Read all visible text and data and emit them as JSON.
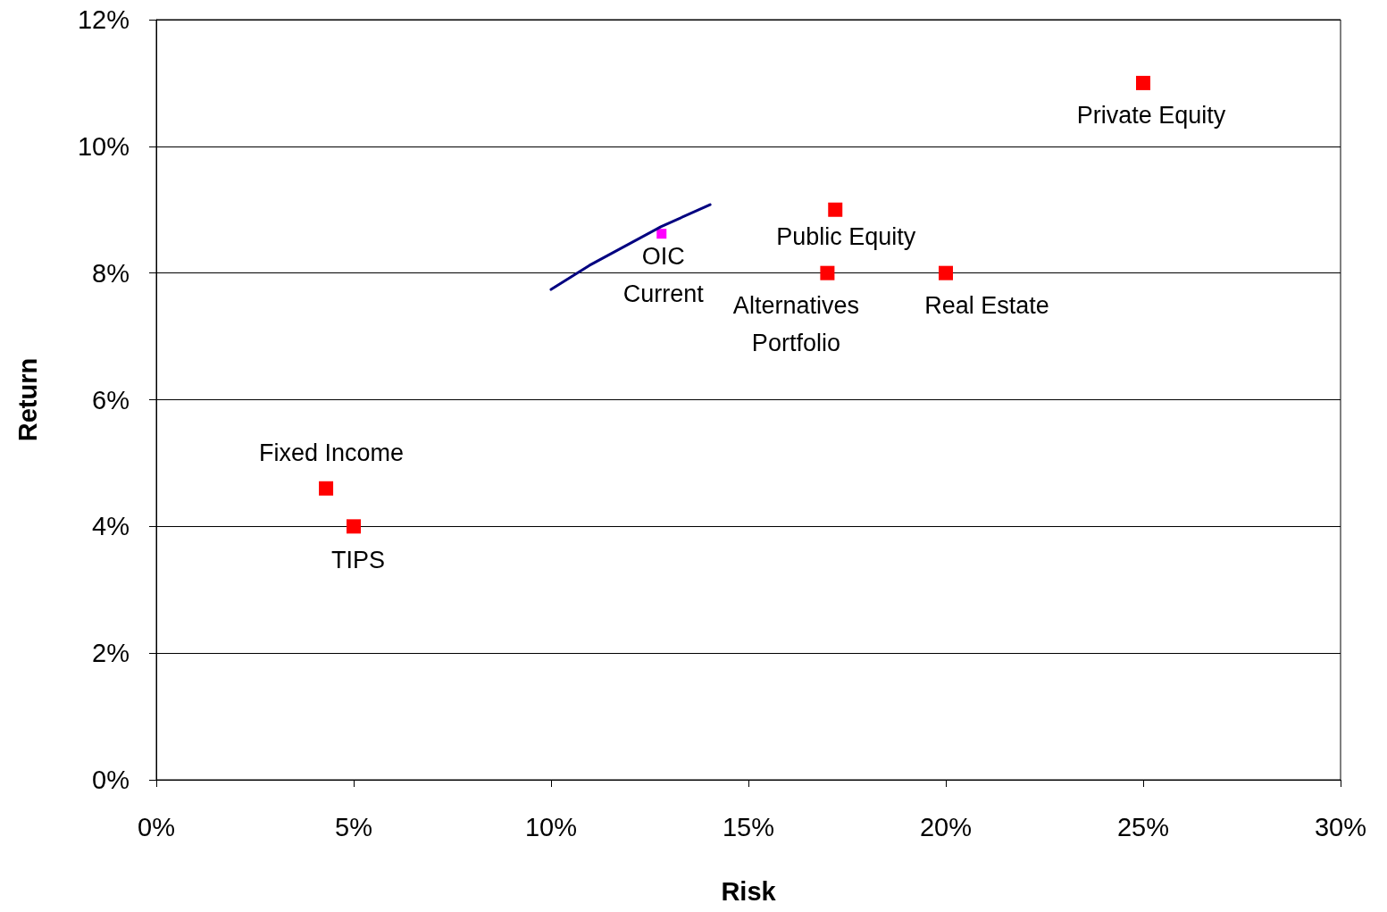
{
  "chart_data": {
    "type": "scatter",
    "xlabel": "Risk",
    "ylabel": "Return",
    "marker": "square",
    "legend": false,
    "grid": "y",
    "xlim": [
      0,
      30
    ],
    "xticks": [
      {
        "value": 0,
        "label": "0%"
      },
      {
        "value": 5,
        "label": "5%"
      },
      {
        "value": 10,
        "label": "10%"
      },
      {
        "value": 15,
        "label": "15%"
      },
      {
        "value": 20,
        "label": "20%"
      },
      {
        "value": 25,
        "label": "25%"
      },
      {
        "value": 30,
        "label": "30%"
      }
    ],
    "ylim": [
      0,
      12
    ],
    "yticks": [
      {
        "value": 0,
        "label": "0%"
      },
      {
        "value": 2,
        "label": "2%"
      },
      {
        "value": 4,
        "label": "4%"
      },
      {
        "value": 6,
        "label": "6%"
      },
      {
        "value": 8,
        "label": "8%"
      },
      {
        "value": 10,
        "label": "10%"
      },
      {
        "value": 12,
        "label": "12%"
      }
    ],
    "series": [
      {
        "type": "line",
        "color": "#000080",
        "marker": "none",
        "x": [
          10.0,
          10.97,
          12.78,
          14.03
        ],
        "values": [
          7.74,
          8.12,
          8.73,
          9.08
        ]
      },
      {
        "name": "Private Equity",
        "color": "#ff0000",
        "x": [
          25.0
        ],
        "values": [
          11.0
        ]
      },
      {
        "name": "Public Equity",
        "color": "#ff0000",
        "x": [
          17.2
        ],
        "values": [
          9.0
        ]
      },
      {
        "name": "Alternatives\nPortfolio",
        "color": "#ff0000",
        "x": [
          17.0
        ],
        "values": [
          8.0
        ]
      },
      {
        "name": "Real Estate",
        "color": "#ff0000",
        "x": [
          20.0
        ],
        "values": [
          8.0
        ]
      },
      {
        "name": "Fixed Income",
        "color": "#ff0000",
        "x": [
          4.3
        ],
        "values": [
          4.6
        ]
      },
      {
        "name": "TIPS",
        "color": "#ff0000",
        "x": [
          5.0
        ],
        "values": [
          4.0
        ]
      },
      {
        "name": "OIC\nCurrent",
        "color": "#ff00ff",
        "x": [
          12.8
        ],
        "values": [
          8.62
        ]
      }
    ]
  }
}
